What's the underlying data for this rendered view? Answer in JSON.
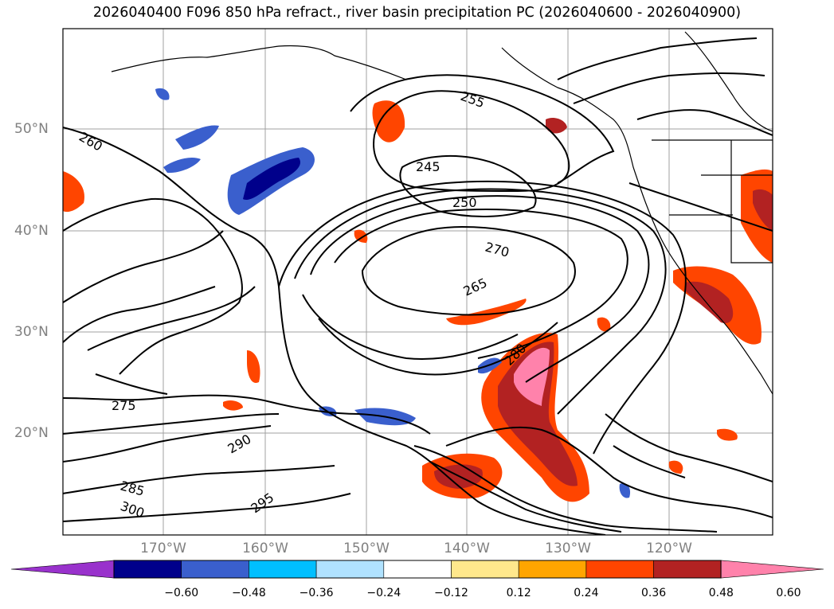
{
  "title": "2026040400 F096 850 hPa refract., river basin precipitation PC (2026040600 - 2026040900)",
  "lat_labels": [
    "50°N",
    "40°N",
    "30°N",
    "20°N"
  ],
  "lon_labels": [
    "170°W",
    "160°W",
    "150°W",
    "140°W",
    "130°W",
    "120°W"
  ],
  "contour_labels": [
    "245",
    "250",
    "255",
    "260",
    "265",
    "270",
    "275",
    "280",
    "285",
    "290",
    "295",
    "300"
  ],
  "colorbar": {
    "ticks": [
      "−0.60",
      "−0.48",
      "−0.36",
      "−0.24",
      "−0.12",
      "0.12",
      "0.24",
      "0.36",
      "0.48",
      "0.60"
    ],
    "colors": [
      "#9932cc",
      "#00008b",
      "#3a5fcd",
      "#00bfff",
      "#b0e2ff",
      "#ffffff",
      "#ffe88c",
      "#ffa500",
      "#ff4500",
      "#b22222",
      "#ff82ab"
    ]
  },
  "colors": {
    "land_lines": "#000000",
    "grid": "#a0a0a0",
    "axis_label": "#808080"
  }
}
